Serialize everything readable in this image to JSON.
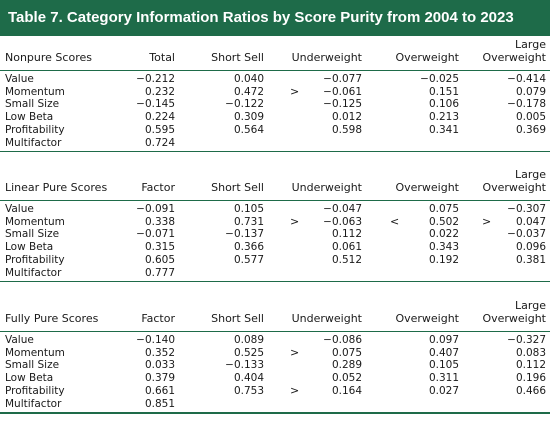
{
  "title": "Table 7.  Category Information Ratios by Score Purity from 2004 to 2023",
  "colors": {
    "accent": "#1e6b49"
  },
  "panels": [
    {
      "first_header": "Nonpure Scores",
      "headers": [
        "Total",
        "Short Sell",
        "Underweight",
        "Overweight",
        "Large\nOverweight"
      ],
      "rows": [
        {
          "label": "Value",
          "values": [
            "−0.212",
            "0.040",
            "−0.077",
            "−0.025",
            "−0.414"
          ],
          "sym1": "",
          "sym2": "",
          "sym3": ""
        },
        {
          "label": "Momentum",
          "values": [
            "0.232",
            "0.472",
            "−0.061",
            "0.151",
            "0.079"
          ],
          "sym1": ">",
          "sym2": "",
          "sym3": ""
        },
        {
          "label": "Small Size",
          "values": [
            "−0.145",
            "−0.122",
            "−0.125",
            "0.106",
            "−0.178"
          ],
          "sym1": "",
          "sym2": "",
          "sym3": ""
        },
        {
          "label": "Low Beta",
          "values": [
            "0.224",
            "0.309",
            "0.012",
            "0.213",
            "0.005"
          ],
          "sym1": "",
          "sym2": "",
          "sym3": ""
        },
        {
          "label": "Profitability",
          "values": [
            "0.595",
            "0.564",
            "0.598",
            "0.341",
            "0.369"
          ],
          "sym1": "",
          "sym2": "",
          "sym3": ""
        },
        {
          "label": "Multifactor",
          "values": [
            "0.724",
            "",
            "",
            "",
            ""
          ],
          "sym1": "",
          "sym2": "",
          "sym3": ""
        }
      ]
    },
    {
      "first_header": "Linear Pure Scores",
      "headers": [
        "Factor",
        "Short Sell",
        "Underweight",
        "Overweight",
        "Large\nOverweight"
      ],
      "rows": [
        {
          "label": "Value",
          "values": [
            "−0.091",
            "0.105",
            "−0.047",
            "0.075",
            "−0.307"
          ],
          "sym1": "",
          "sym2": "",
          "sym3": ""
        },
        {
          "label": "Momentum",
          "values": [
            "0.338",
            "0.731",
            "−0.063",
            "0.502",
            "0.047"
          ],
          "sym1": ">",
          "sym2": "<",
          "sym3": ">"
        },
        {
          "label": "Small Size",
          "values": [
            "−0.071",
            "−0.137",
            "0.112",
            "0.022",
            "−0.037"
          ],
          "sym1": "",
          "sym2": "",
          "sym3": ""
        },
        {
          "label": "Low Beta",
          "values": [
            "0.315",
            "0.366",
            "0.061",
            "0.343",
            "0.096"
          ],
          "sym1": "",
          "sym2": "",
          "sym3": ""
        },
        {
          "label": "Profitability",
          "values": [
            "0.605",
            "0.577",
            "0.512",
            "0.192",
            "0.381"
          ],
          "sym1": "",
          "sym2": "",
          "sym3": ""
        },
        {
          "label": "Multifactor",
          "values": [
            "0.777",
            "",
            "",
            "",
            ""
          ],
          "sym1": "",
          "sym2": "",
          "sym3": ""
        }
      ]
    },
    {
      "first_header": "Fully Pure Scores",
      "headers": [
        "Factor",
        "Short Sell",
        "Underweight",
        "Overweight",
        "Large\nOverweight"
      ],
      "rows": [
        {
          "label": "Value",
          "values": [
            "−0.140",
            "0.089",
            "−0.086",
            "0.097",
            "−0.327"
          ],
          "sym1": "",
          "sym2": "",
          "sym3": ""
        },
        {
          "label": "Momentum",
          "values": [
            "0.352",
            "0.525",
            "0.075",
            "0.407",
            "0.083"
          ],
          "sym1": ">",
          "sym2": "",
          "sym3": ""
        },
        {
          "label": "Small Size",
          "values": [
            "0.033",
            "−0.133",
            "0.289",
            "0.105",
            "0.112"
          ],
          "sym1": "",
          "sym2": "",
          "sym3": ""
        },
        {
          "label": "Low Beta",
          "values": [
            "0.379",
            "0.404",
            "0.052",
            "0.311",
            "0.196"
          ],
          "sym1": "",
          "sym2": "",
          "sym3": ""
        },
        {
          "label": "Profitability",
          "values": [
            "0.661",
            "0.753",
            "0.164",
            "0.027",
            "0.466"
          ],
          "sym1": ">",
          "sym2": "",
          "sym3": ""
        },
        {
          "label": "Multifactor",
          "values": [
            "0.851",
            "",
            "",
            "",
            ""
          ],
          "sym1": "",
          "sym2": "",
          "sym3": ""
        }
      ]
    }
  ]
}
